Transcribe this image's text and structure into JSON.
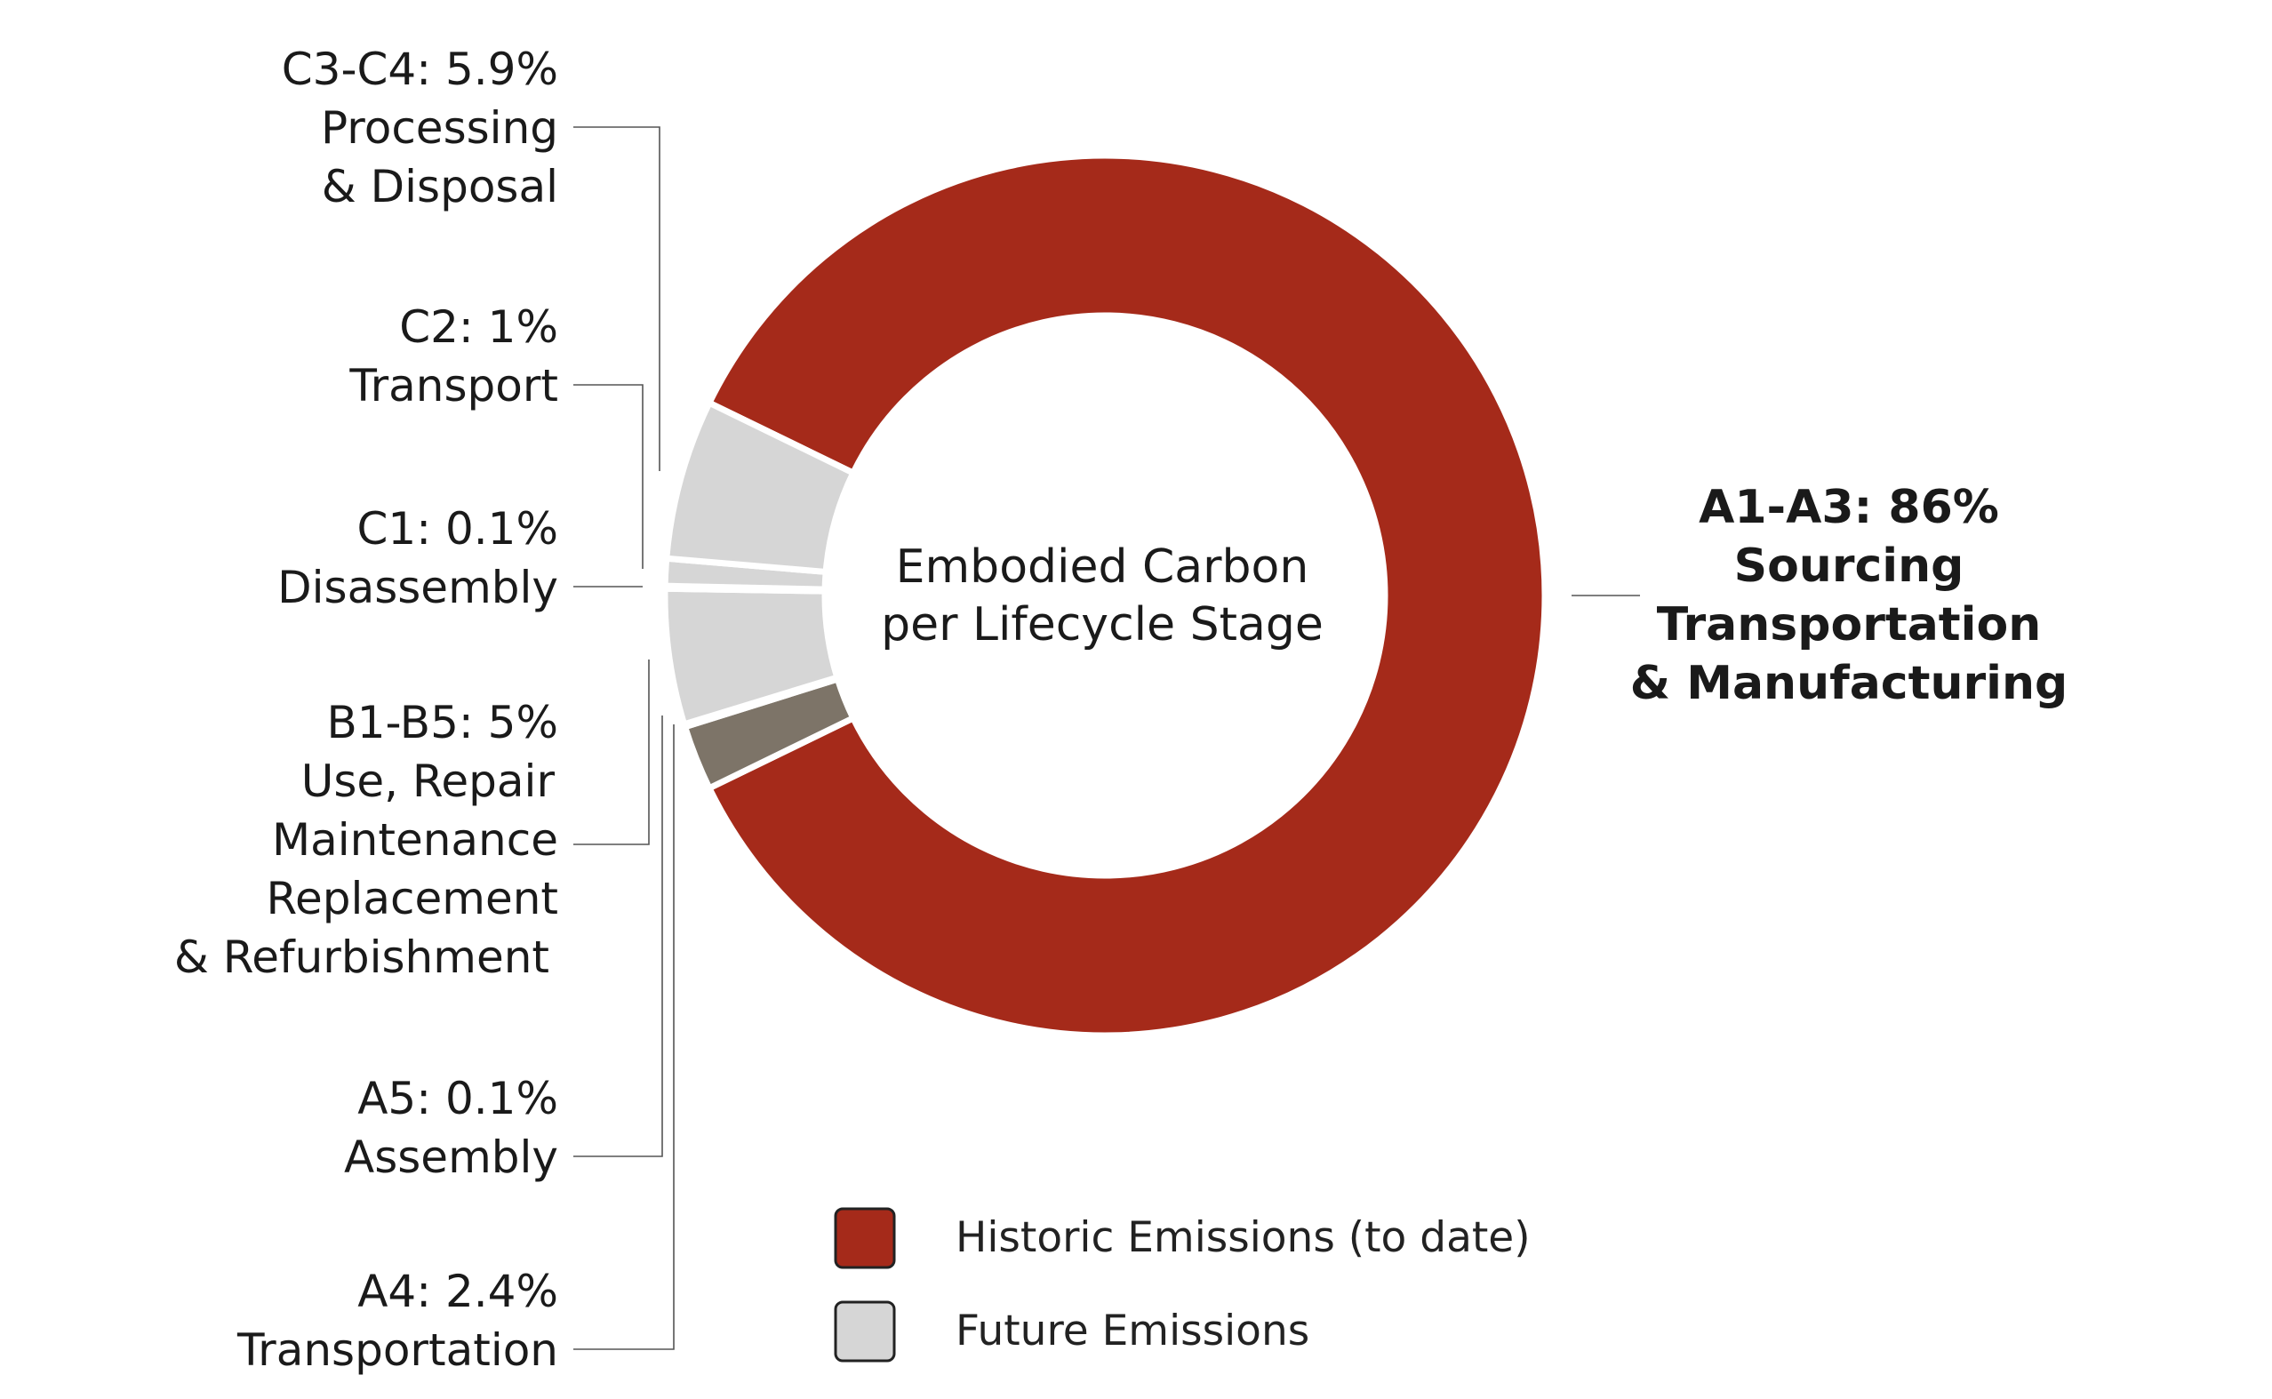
{
  "chart_data": {
    "type": "pie",
    "variant": "donut",
    "title": [
      "Embodied Carbon",
      "per Lifecycle Stage"
    ],
    "slices": [
      {
        "id": "a1-a3",
        "code": "A1-A3:",
        "percent_label": "86%",
        "value": 86,
        "description": [
          "Sourcing",
          "Transportation",
          "& Manufacturing"
        ],
        "category": "historic"
      },
      {
        "id": "a4",
        "code": "A4:",
        "percent_label": "2.4%",
        "value": 2.4,
        "description": [
          "Transportation"
        ],
        "category": "historic_dark"
      },
      {
        "id": "a5",
        "code": "A5:",
        "percent_label": "0.1%",
        "value": 0.1,
        "description": [
          "Assembly"
        ],
        "category": "future"
      },
      {
        "id": "b1-b5",
        "code": "B1-B5:",
        "percent_label": "5%",
        "value": 5,
        "description": [
          "Use, Repair",
          "Maintenance",
          "Replacement",
          "& Refurbishment"
        ],
        "category": "future"
      },
      {
        "id": "c1",
        "code": "C1:",
        "percent_label": "0.1%",
        "value": 0.1,
        "description": [
          "Disassembly"
        ],
        "category": "future"
      },
      {
        "id": "c2",
        "code": "C2:",
        "percent_label": "1%",
        "value": 1,
        "description": [
          "Transport"
        ],
        "category": "future"
      },
      {
        "id": "c3-c4",
        "code": "C3-C4:",
        "percent_label": "5.9%",
        "value": 5.9,
        "description": [
          "Processing",
          "& Disposal"
        ],
        "category": "future"
      }
    ],
    "legend": [
      {
        "label": "Historic Emissions (to date)",
        "category": "historic"
      },
      {
        "label": "Future Emissions",
        "category": "future"
      }
    ],
    "colors": {
      "historic": "#A52A1A",
      "historic_dark": "#7D7468",
      "future": "#D6D6D6",
      "separator": "#FFFFFF",
      "leader": "#555555",
      "text": "#1A1A1A"
    }
  }
}
